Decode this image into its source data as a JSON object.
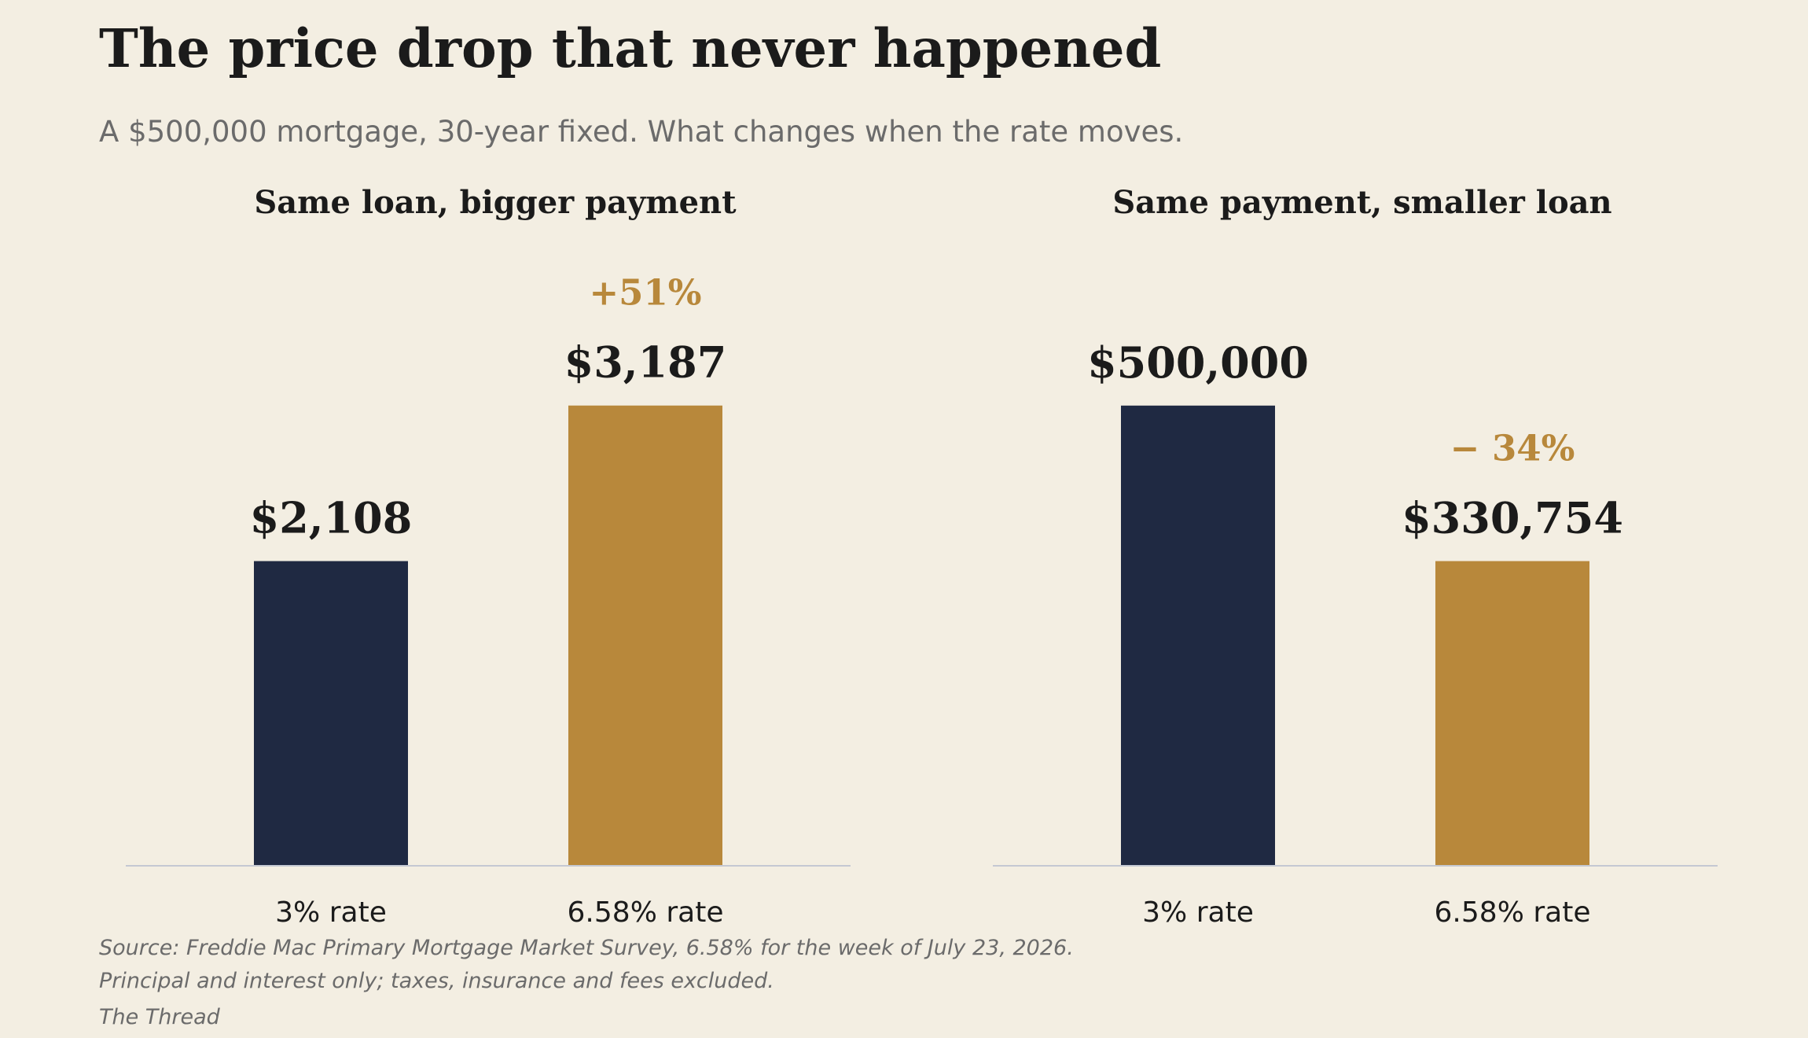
{
  "title": "The price drop that never happened",
  "subtitle": "A $500,000 mortgage, 30-year fixed. What changes when the rate moves.",
  "colors": {
    "background": "#f3eee2",
    "base_bar": "#1f2942",
    "accent_bar": "#b8883b",
    "accent_text": "#b8883b",
    "axis_line": "#c4c8d2"
  },
  "chart_data": [
    {
      "type": "bar",
      "title": "Same loan, bigger payment",
      "categories": [
        "3% rate",
        "6.58% rate"
      ],
      "values": [
        2108,
        3187
      ],
      "value_labels": [
        "$2,108",
        "$3,187"
      ],
      "change_label": "+51%",
      "ylim": [
        0,
        4200
      ],
      "grid": false
    },
    {
      "type": "bar",
      "title": "Same payment, smaller loan",
      "categories": [
        "3% rate",
        "6.58% rate"
      ],
      "values": [
        500000,
        330754
      ],
      "value_labels": [
        "$500,000",
        "$330,754"
      ],
      "change_label": "− 34%",
      "ylim": [
        0,
        659000
      ],
      "grid": false
    }
  ],
  "footer": {
    "source": "Source: Freddie Mac Primary Mortgage Market Survey, 6.58% for the week of July 23, 2026.",
    "note": "Principal and interest only; taxes, insurance and fees excluded.",
    "credit": "The Thread"
  }
}
